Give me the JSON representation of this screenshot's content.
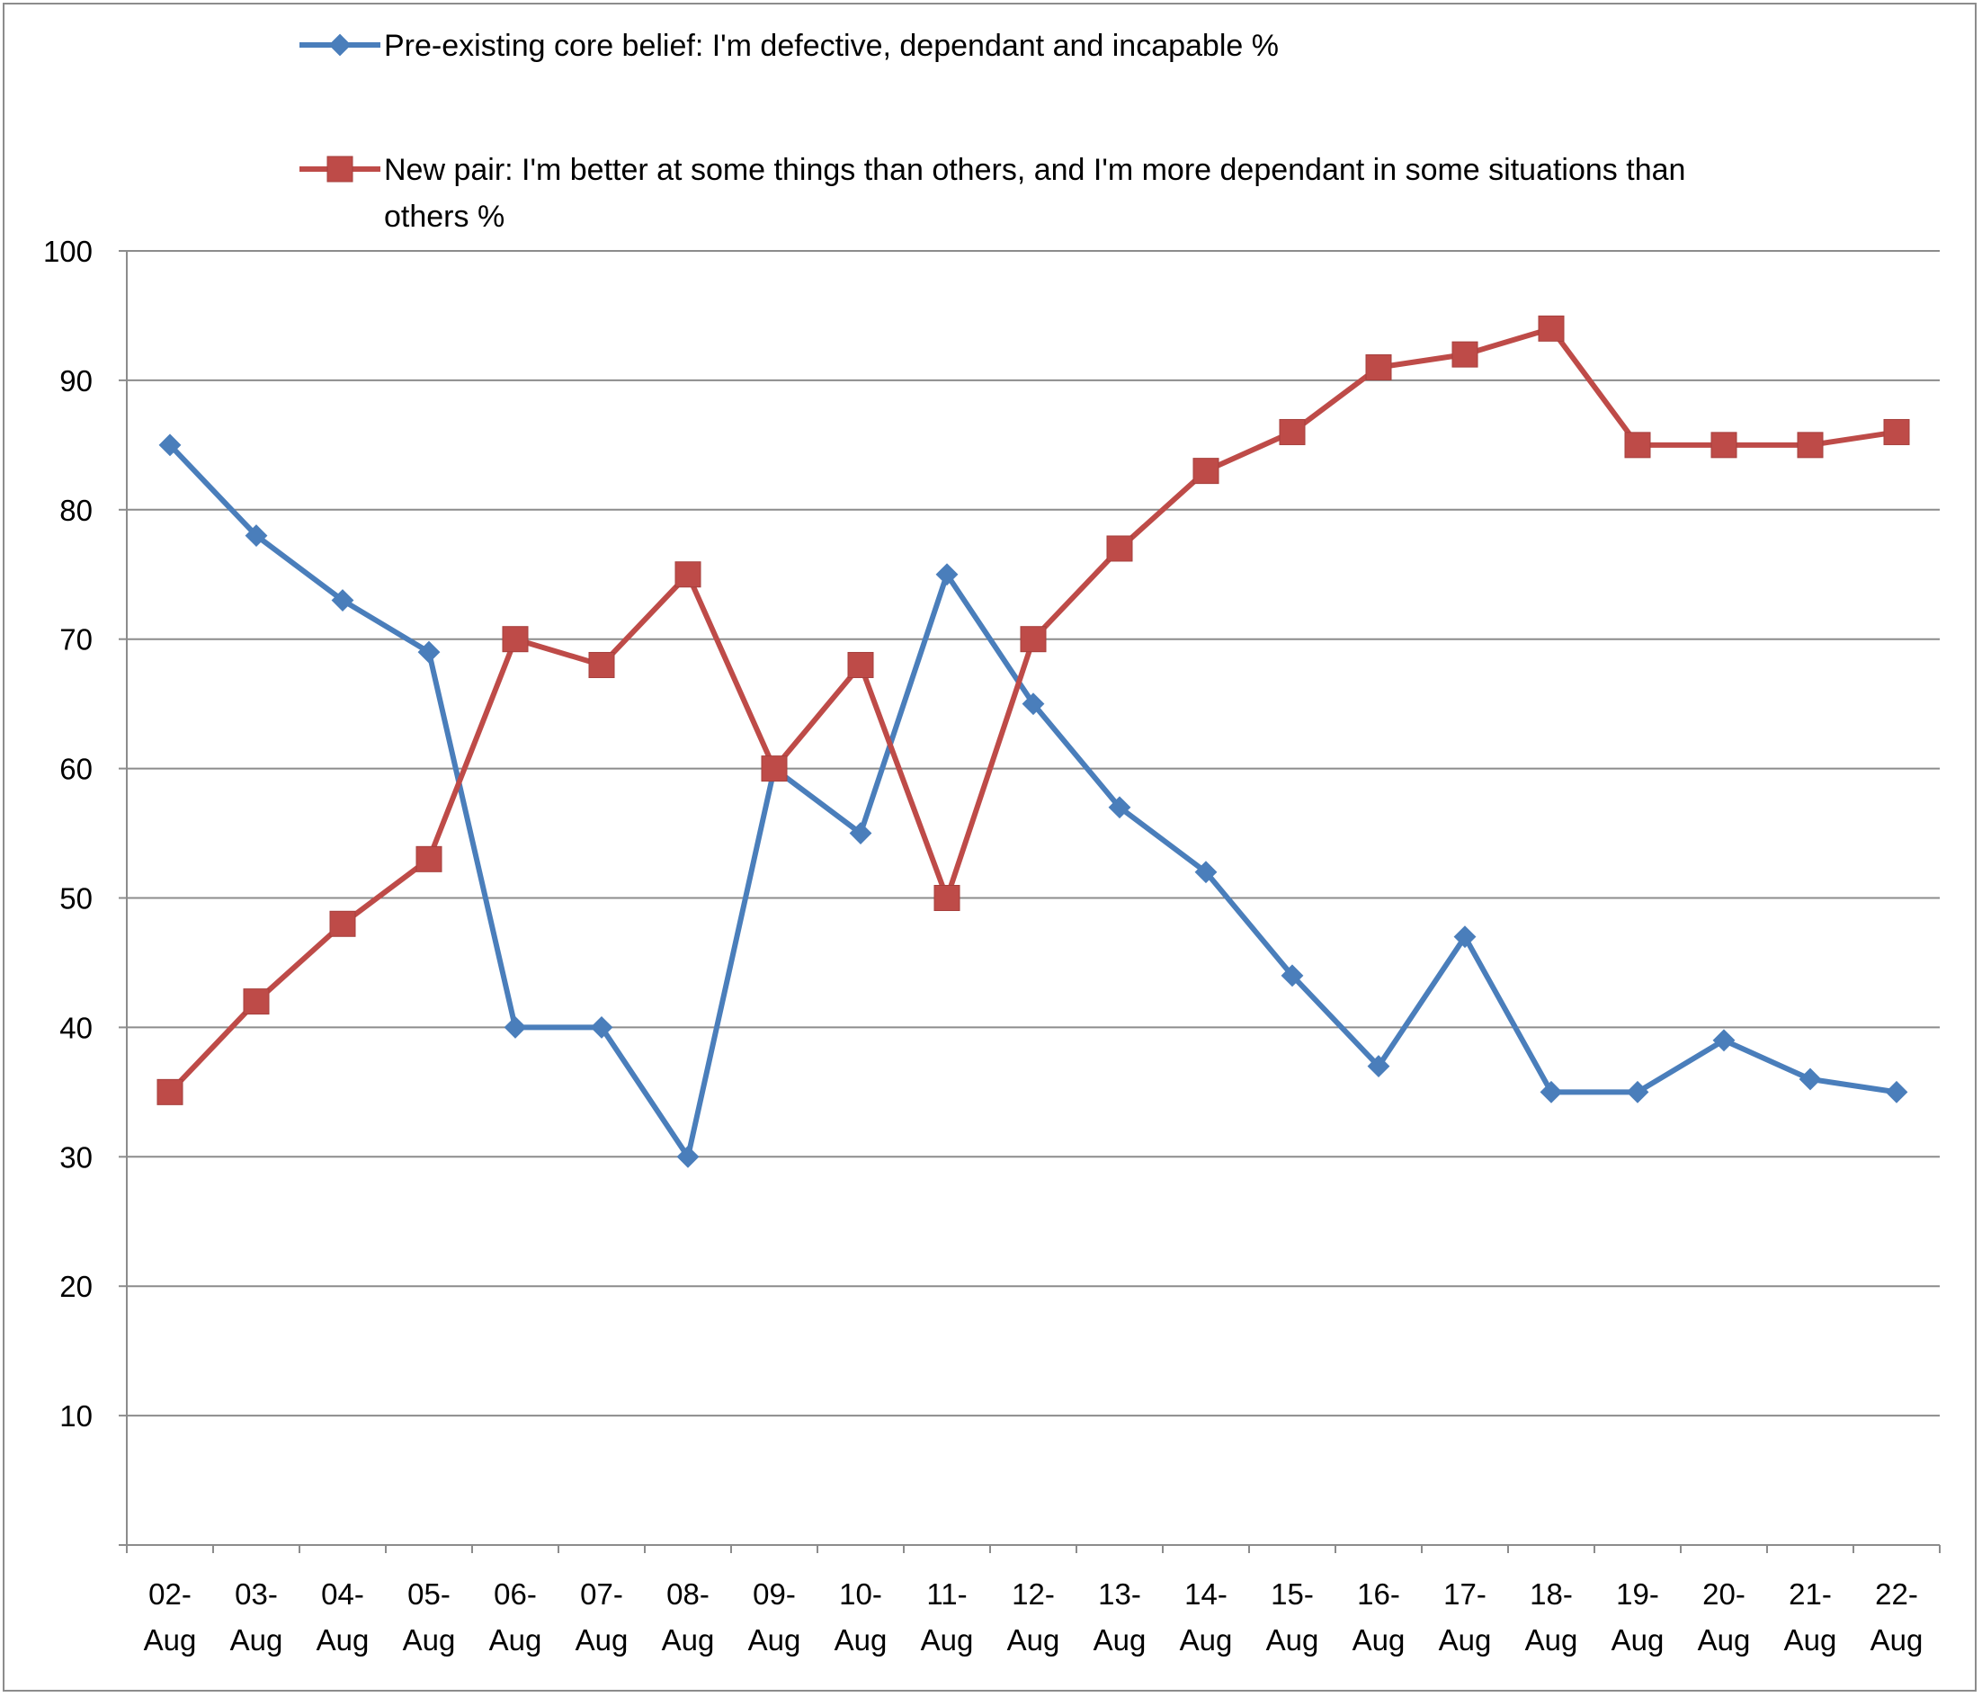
{
  "chart_data": {
    "type": "line",
    "title": "",
    "xlabel": "",
    "ylabel": "",
    "ylim": [
      0,
      100
    ],
    "yticks": [
      10,
      20,
      30,
      40,
      50,
      60,
      70,
      80,
      90,
      100
    ],
    "grid": true,
    "legend_position": "top",
    "categories": [
      [
        "02-",
        "Aug"
      ],
      [
        "03-",
        "Aug"
      ],
      [
        "04-",
        "Aug"
      ],
      [
        "05-",
        "Aug"
      ],
      [
        "06-",
        "Aug"
      ],
      [
        "07-",
        "Aug"
      ],
      [
        "08-",
        "Aug"
      ],
      [
        "09-",
        "Aug"
      ],
      [
        "10-",
        "Aug"
      ],
      [
        "11-",
        "Aug"
      ],
      [
        "12-",
        "Aug"
      ],
      [
        "13-",
        "Aug"
      ],
      [
        "14-",
        "Aug"
      ],
      [
        "15-",
        "Aug"
      ],
      [
        "16-",
        "Aug"
      ],
      [
        "17-",
        "Aug"
      ],
      [
        "18-",
        "Aug"
      ],
      [
        "19-",
        "Aug"
      ],
      [
        "20-",
        "Aug"
      ],
      [
        "21-",
        "Aug"
      ],
      [
        "22-",
        "Aug"
      ]
    ],
    "series": [
      {
        "name": "Pre-existing core belief: I'm defective, dependant and incapable %",
        "legend_lines": [
          "Pre-existing core belief: I'm defective, dependant and incapable %"
        ],
        "color": "#4A7EBB",
        "marker": "diamond",
        "values": [
          85,
          78,
          73,
          69,
          40,
          40,
          30,
          60,
          55,
          75,
          65,
          57,
          52,
          44,
          37,
          47,
          35,
          35,
          39,
          36,
          35
        ]
      },
      {
        "name": "New pair: I'm better at some things than others, and I'm more dependant in some situations than others %",
        "legend_lines": [
          "New pair: I'm better at some things than others, and I'm more dependant in some situations than",
          "others %"
        ],
        "color": "#BE4B48",
        "marker": "square",
        "values": [
          35,
          42,
          48,
          53,
          70,
          68,
          75,
          60,
          68,
          50,
          70,
          77,
          83,
          86,
          91,
          92,
          94,
          85,
          85,
          85,
          86
        ]
      }
    ]
  }
}
